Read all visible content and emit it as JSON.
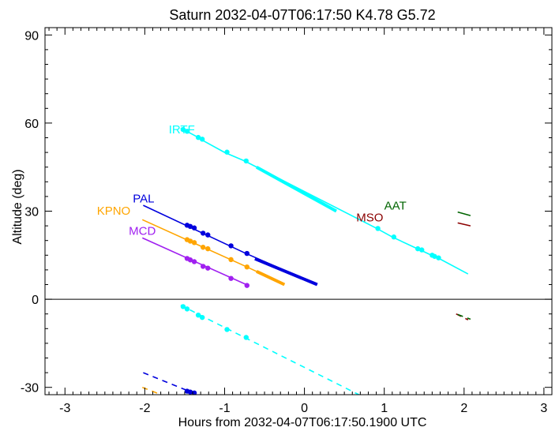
{
  "chart_data": {
    "type": "line",
    "title": "Saturn 2032-04-07T06:17:50  K4.78  G5.72",
    "xlabel": "Hours from 2032-04-07T06:17:50.1900 UTC",
    "ylabel": "Altitude (deg)",
    "xlim": [
      -3.25,
      3.1
    ],
    "ylim": [
      -32.5,
      92.5
    ],
    "x_ticks": [
      "-3",
      "-2",
      "-1",
      "0",
      "1",
      "2",
      "3"
    ],
    "y_ticks": [
      "-30",
      "0",
      "30",
      "60",
      "90"
    ],
    "zero_line": true,
    "series": [
      {
        "name": "IRTF",
        "color": "#00ffff",
        "above": [
          [
            -1.55,
            58.3
          ],
          [
            -1.35,
            55.4
          ],
          [
            -1.3,
            54.5
          ],
          [
            -1.0,
            50.0
          ],
          [
            -0.75,
            47.1
          ],
          [
            0.9,
            24.2
          ],
          [
            1.1,
            21.2
          ],
          [
            1.4,
            17.4
          ],
          [
            1.45,
            16.8
          ],
          [
            1.6,
            14.9
          ],
          [
            1.65,
            14.4
          ],
          [
            2.05,
            8.6
          ]
        ],
        "thick": [
          [
            -0.6,
            45.0
          ],
          [
            0.4,
            30.0
          ]
        ],
        "dots": [
          [
            -1.52,
            57.8
          ],
          [
            -1.47,
            57.2
          ],
          [
            -1.33,
            55.1
          ],
          [
            -1.28,
            54.5
          ],
          [
            -0.97,
            50.1
          ],
          [
            -0.73,
            47.1
          ],
          [
            0.92,
            24.1
          ],
          [
            1.12,
            21.2
          ],
          [
            1.42,
            17.2
          ],
          [
            1.47,
            16.8
          ],
          [
            1.6,
            15.0
          ],
          [
            1.63,
            14.6
          ],
          [
            1.68,
            14.1
          ]
        ],
        "below": [
          [
            -1.55,
            -2.0
          ],
          [
            -1.3,
            -5.5
          ],
          [
            -0.75,
            -13.0
          ],
          [
            0.72,
            -33.0
          ]
        ],
        "below_dots": [
          [
            -1.52,
            -2.5
          ],
          [
            -1.47,
            -3.3
          ],
          [
            -1.33,
            -5.4
          ],
          [
            -1.28,
            -6.2
          ],
          [
            -0.97,
            -10.3
          ],
          [
            -0.73,
            -13.0
          ]
        ],
        "label_pos": [
          -1.7,
          56.5
        ]
      },
      {
        "name": "PAL",
        "color": "#0000dd",
        "above": [
          [
            -2.02,
            32.0
          ],
          [
            -0.75,
            15.8
          ],
          [
            0.16,
            5.0
          ]
        ],
        "thick": [
          [
            -0.62,
            13.8
          ],
          [
            0.16,
            5.0
          ]
        ],
        "dots": [
          [
            -1.47,
            25.2
          ],
          [
            -1.43,
            24.8
          ],
          [
            -1.38,
            24.3
          ],
          [
            -1.27,
            22.5
          ],
          [
            -1.21,
            21.9
          ],
          [
            -0.92,
            18.2
          ],
          [
            -0.72,
            15.6
          ]
        ],
        "below": [
          [
            -2.02,
            -25.0
          ],
          [
            -1.2,
            -34.0
          ]
        ],
        "below_dots": [
          [
            -1.47,
            -31.3
          ],
          [
            -1.43,
            -31.6
          ],
          [
            -1.38,
            -31.9
          ]
        ],
        "label_pos": [
          -2.15,
          33.0
        ]
      },
      {
        "name": "KPNO",
        "color": "#ffa500",
        "above": [
          [
            -2.03,
            27.1
          ],
          [
            -0.72,
            11.0
          ],
          [
            -0.25,
            5.0
          ]
        ],
        "thick": [
          [
            -0.6,
            9.5
          ],
          [
            -0.25,
            5.0
          ]
        ],
        "dots": [
          [
            -1.47,
            20.3
          ],
          [
            -1.43,
            19.8
          ],
          [
            -1.38,
            19.3
          ],
          [
            -1.27,
            17.7
          ],
          [
            -1.21,
            17.2
          ],
          [
            -0.92,
            13.5
          ],
          [
            -0.72,
            11.0
          ]
        ],
        "below": [
          [
            -2.03,
            -30.0
          ],
          [
            -1.7,
            -33.5
          ]
        ],
        "below_dots": [],
        "label_pos": [
          -2.6,
          28.8
        ]
      },
      {
        "name": "MCD",
        "color": "#a020f0",
        "above": [
          [
            -2.03,
            20.9
          ],
          [
            -0.72,
            4.9
          ]
        ],
        "thick": [],
        "dots": [
          [
            -1.47,
            13.9
          ],
          [
            -1.43,
            13.4
          ],
          [
            -1.38,
            12.8
          ],
          [
            -1.27,
            11.2
          ],
          [
            -1.21,
            10.6
          ],
          [
            -0.92,
            7.1
          ],
          [
            -0.72,
            4.7
          ]
        ],
        "below": [],
        "below_dots": [],
        "label_pos": [
          -2.2,
          22.0
        ]
      },
      {
        "name": "MSO",
        "color": "#8b0000",
        "above": [
          [
            1.92,
            26.0
          ],
          [
            2.08,
            25.0
          ]
        ],
        "thick": [],
        "dots": [],
        "below": [
          [
            1.9,
            -5.0
          ],
          [
            2.05,
            -7.0
          ]
        ],
        "below_dots": [],
        "label_pos": [
          0.65,
          26.5
        ]
      },
      {
        "name": "AAT",
        "color": "#006400",
        "above": [
          [
            1.92,
            29.7
          ],
          [
            2.08,
            28.5
          ]
        ],
        "thick": [],
        "dots": [],
        "below": [
          [
            1.92,
            -5.2
          ],
          [
            2.08,
            -6.8
          ]
        ],
        "below_dots": [],
        "label_pos": [
          1.0,
          30.5
        ]
      }
    ]
  }
}
